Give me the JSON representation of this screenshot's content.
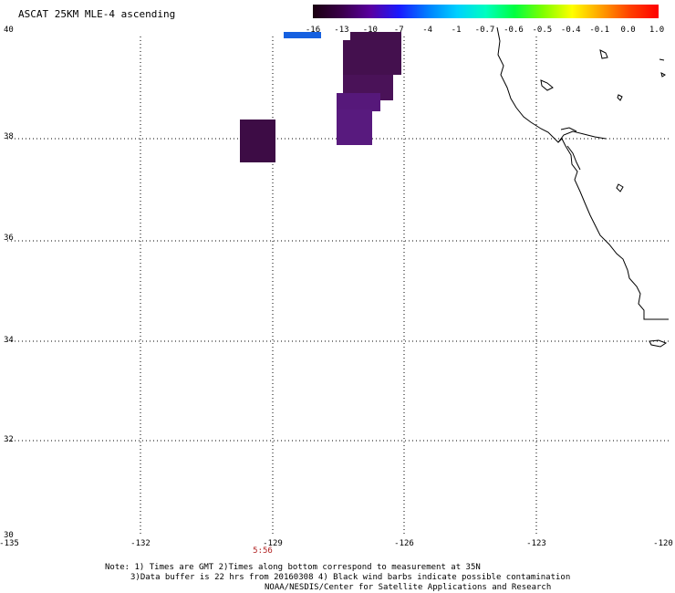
{
  "title": "ASCAT 25KM MLE-4 ascending",
  "colorbar": {
    "labels": [
      "-16",
      "-13",
      "-10",
      "-7",
      "-4",
      "-1",
      "-0.7",
      "-0.6",
      "-0.5",
      "-0.4",
      "-0.1",
      "0.0",
      "1.0"
    ],
    "gradient": [
      "#1a0010",
      "#3a004a",
      "#5a00a0",
      "#1a1aff",
      "#0080ff",
      "#00d0ff",
      "#00ffc0",
      "#00ff40",
      "#80ff00",
      "#ffff00",
      "#ffa000",
      "#ff4000",
      "#ff0000"
    ]
  },
  "axes": {
    "lat_labels": [
      "40",
      "38",
      "36",
      "34",
      "32",
      "30"
    ],
    "lon_labels": [
      "-135",
      "-132",
      "-129",
      "-126",
      "-123",
      "-120"
    ],
    "lat_range": [
      30,
      40
    ],
    "lon_range": [
      -135,
      -120
    ],
    "grid": "dotted"
  },
  "time_label": "5:56",
  "notes": [
    "Note: 1) Times are GMT 2)Times along bottom correspond to measurement at 35N",
    "3)Data buffer is 22 hrs from 20160308 4) Black wind barbs indicate possible contamination",
    "NOAA/NESDIS/Center for Satellite Applications and Research"
  ],
  "colors": {
    "mle_dark": "#3a0a3e",
    "mle_mid": "#4a1060",
    "mle_purple": "#5a1a7a",
    "coast": "#000000",
    "time_text": "#b22222"
  }
}
